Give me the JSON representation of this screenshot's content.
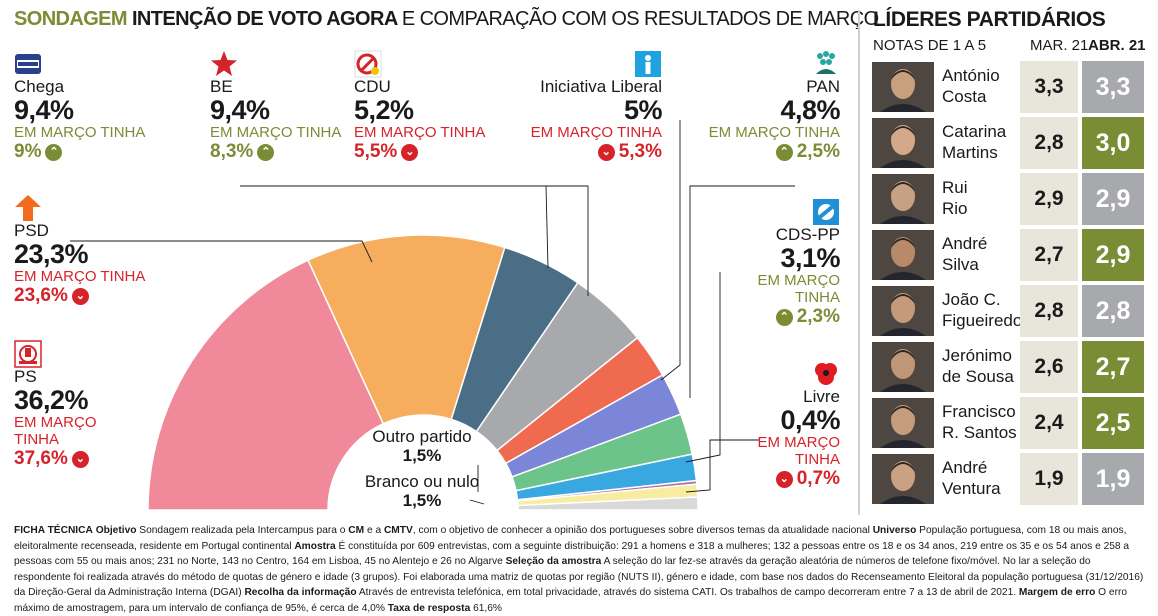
{
  "title": {
    "part1": "SONDAGEM",
    "part2": "INTENÇÃO DE VOTO AGORA",
    "part3": "E COMPARAÇÃO COM OS RESULTADOS DE MARÇO"
  },
  "colors": {
    "brand_green": "#7a8c34",
    "down_red": "#d6232a",
    "neutral_grey": "#a7a9ac"
  },
  "chart_data": {
    "type": "pie",
    "subtype": "semicircle",
    "title": "INTENÇÃO DE VOTO AGORA",
    "unit": "%",
    "slices": [
      {
        "name": "PS",
        "value": 36.2,
        "march": 37.6,
        "color": "#f08a9a"
      },
      {
        "name": "PSD",
        "value": 23.3,
        "march": 23.6,
        "color": "#f7ad5e"
      },
      {
        "name": "BE",
        "value": 9.4,
        "march": 8.3,
        "color": "#4a6e86"
      },
      {
        "name": "Chega",
        "value": 9.4,
        "march": 9.0,
        "color": "#a7a9ac"
      },
      {
        "name": "CDU",
        "value": 5.2,
        "march": 5.5,
        "color": "#f06a50"
      },
      {
        "name": "Iniciativa Liberal",
        "value": 5.0,
        "march": 5.3,
        "color": "#7b86d8"
      },
      {
        "name": "PAN",
        "value": 4.8,
        "march": 2.5,
        "color": "#6cc48a"
      },
      {
        "name": "CDS-PP",
        "value": 3.1,
        "march": 2.3,
        "color": "#3aa8e0"
      },
      {
        "name": "Livre",
        "value": 0.4,
        "march": 0.7,
        "color": "#b06ea0"
      },
      {
        "name": "Outro partido",
        "value": 1.5,
        "march": null,
        "color": "#f7eca0"
      },
      {
        "name": "Branco ou nulo",
        "value": 1.5,
        "march": null,
        "color": "#d9d9d9"
      }
    ]
  },
  "march_label": "EM MARÇO TINHA",
  "parties": {
    "chega": {
      "name": "Chega",
      "pct": "9,4%",
      "label": "EM MARÇO TINHA",
      "prev": "9%",
      "trend": "up"
    },
    "be": {
      "name": "BE",
      "pct": "9,4%",
      "label": "EM MARÇO TINHA",
      "prev": "8,3%",
      "trend": "up"
    },
    "cdu": {
      "name": "CDU",
      "pct": "5,2%",
      "label": "EM MARÇO TINHA",
      "prev": "5,5%",
      "trend": "down"
    },
    "il": {
      "name": "Iniciativa Liberal",
      "pct": "5%",
      "label": "EM MARÇO TINHA",
      "prev": "5,3%",
      "trend": "down"
    },
    "pan": {
      "name": "PAN",
      "pct": "4,8%",
      "label": "EM MARÇO TINHA",
      "prev": "2,5%",
      "trend": "up"
    },
    "psd": {
      "name": "PSD",
      "pct": "23,3%",
      "label": "EM MARÇO TINHA",
      "prev": "23,6%",
      "trend": "down"
    },
    "cds": {
      "name": "CDS-PP",
      "pct": "3,1%",
      "label1": "EM MARÇO",
      "label2": "TINHA",
      "prev": "2,3%",
      "trend": "up"
    },
    "ps": {
      "name": "PS",
      "pct": "36,2%",
      "label1": "EM MARÇO",
      "label2": "TINHA",
      "prev": "37,6%",
      "trend": "down"
    },
    "livre": {
      "name": "Livre",
      "pct": "0,4%",
      "label1": "EM MARÇO",
      "label2": "TINHA",
      "prev": "0,7%",
      "trend": "down"
    },
    "outro": {
      "name": "Outro partido",
      "pct": "1,5%"
    },
    "branco": {
      "name": "Branco ou nulo",
      "pct": "1,5%"
    }
  },
  "leaders": {
    "title": "LÍDERES PARTIDÁRIOS",
    "subtitle": "NOTAS DE 1 A 5",
    "col_mar": "MAR. 21",
    "col_abr": "ABR. 21",
    "rows": [
      {
        "line1": "António",
        "line2": "Costa",
        "mar": "3,3",
        "abr": "3,3",
        "trend": "same",
        "mar_value": 3.3,
        "abr_value": 3.3
      },
      {
        "line1": "Catarina",
        "line2": "Martins",
        "mar": "2,8",
        "abr": "3,0",
        "trend": "up",
        "mar_value": 2.8,
        "abr_value": 3.0
      },
      {
        "line1": "Rui",
        "line2": "Rio",
        "mar": "2,9",
        "abr": "2,9",
        "trend": "same",
        "mar_value": 2.9,
        "abr_value": 2.9
      },
      {
        "line1": "André",
        "line2": "Silva",
        "mar": "2,7",
        "abr": "2,9",
        "trend": "up",
        "mar_value": 2.7,
        "abr_value": 2.9
      },
      {
        "line1": "João C.",
        "line2": "Figueiredo",
        "mar": "2,8",
        "abr": "2,8",
        "trend": "same",
        "mar_value": 2.8,
        "abr_value": 2.8
      },
      {
        "line1": "Jerónimo",
        "line2": "de Sousa",
        "mar": "2,6",
        "abr": "2,7",
        "trend": "up",
        "mar_value": 2.6,
        "abr_value": 2.7
      },
      {
        "line1": "Francisco",
        "line2": "R. Santos",
        "mar": "2,4",
        "abr": "2,5",
        "trend": "up",
        "mar_value": 2.4,
        "abr_value": 2.5
      },
      {
        "line1": "André",
        "line2": "Ventura",
        "mar": "1,9",
        "abr": "1,9",
        "trend": "same",
        "mar_value": 1.9,
        "abr_value": 1.9
      }
    ]
  },
  "ficha": {
    "h_ficha": "FICHA TÉCNICA",
    "h_objetivo": "Objetivo",
    "t_objetivo": " Sondagem realizada pela Intercampus para o ",
    "cm": "CM",
    "e_a": " e a ",
    "cmtv": "CMTV",
    "t_objetivo2": ", com o objetivo de conhecer a opinião dos portugueses sobre diversos temas da atualidade nacional ",
    "h_universo": "Universo",
    "t_universo": " População portuguesa, com 18 ou mais anos, eleitoralmente recenseada, residente em Portugal continental ",
    "h_amostra": "Amostra",
    "t_amostra": " É constituída por 609 entrevistas, com a seguinte distribuição: 291 a homens e 318 a mulheres; 132 a pessoas entre os 18 e os 34 anos, 219 entre os 35 e os 54 anos e 258 a pessoas com 55 ou mais anos; 231 no Norte, 143 no Centro, 164 em Lisboa, 45 no Alentejo e 26 no Algarve ",
    "h_selecao": "Seleção da amostra",
    "t_selecao": " A seleção do lar fez-se através da geração aleatória de números de telefone fixo/móvel. No lar a seleção do respondente foi realizada através do método de quotas de género e idade (3 grupos). Foi elaborada uma matriz de quotas por região (NUTS II), género e idade, com base nos dados do Recenseamento Eleitoral da população portuguesa (31/12/2016) da Direção-Geral da Administração Interna (DGAI) ",
    "h_recolha": "Recolha da informação",
    "t_recolha": " Através de entrevista telefónica, em total privacidade, através do sistema CATI. Os trabalhos de campo decorreram entre 7 a 13 de abril de 2021. ",
    "h_margem": "Margem de erro",
    "t_margem": " O erro máximo de amostragem, para um intervalo de confiança de 95%, é cerca de 4,0% ",
    "h_taxa": "Taxa de resposta",
    "t_taxa": " 61,6%"
  }
}
